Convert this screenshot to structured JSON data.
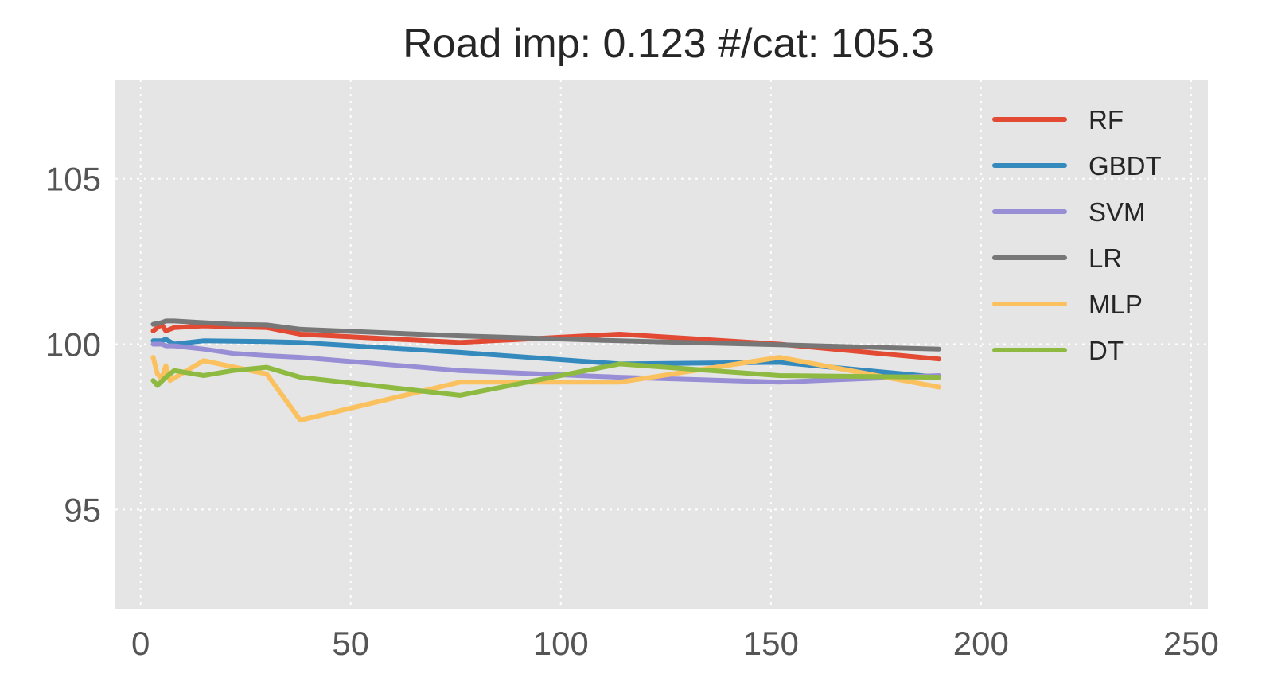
{
  "chart_data": {
    "type": "line",
    "title": "Road imp: 0.123 #/cat: 105.3",
    "xlabel": "",
    "ylabel": "",
    "xlim": [
      -6,
      254
    ],
    "ylim": [
      92,
      108
    ],
    "xticks": [
      0,
      50,
      100,
      150,
      200,
      250
    ],
    "yticks": [
      95,
      100,
      105
    ],
    "grid": true,
    "legend_position": "top-right",
    "series": [
      {
        "name": "RF",
        "color": "#E24A33",
        "points": [
          [
            3,
            100.4
          ],
          [
            5,
            100.6
          ],
          [
            6,
            100.4
          ],
          [
            8,
            100.5
          ],
          [
            15,
            100.55
          ],
          [
            30,
            100.5
          ],
          [
            38,
            100.3
          ],
          [
            76,
            100.05
          ],
          [
            114,
            100.3
          ],
          [
            152,
            100.0
          ],
          [
            190,
            99.55
          ]
        ]
      },
      {
        "name": "GBDT",
        "color": "#348ABD",
        "points": [
          [
            3,
            100.1
          ],
          [
            5,
            100.1
          ],
          [
            6,
            100.15
          ],
          [
            8,
            100.0
          ],
          [
            15,
            100.1
          ],
          [
            30,
            100.08
          ],
          [
            38,
            100.05
          ],
          [
            76,
            99.75
          ],
          [
            114,
            99.4
          ],
          [
            152,
            99.45
          ],
          [
            190,
            99.0
          ]
        ]
      },
      {
        "name": "SVM",
        "color": "#988ED5",
        "points": [
          [
            3,
            100.0
          ],
          [
            5,
            100.0
          ],
          [
            6,
            99.95
          ],
          [
            8,
            99.95
          ],
          [
            15,
            99.85
          ],
          [
            22,
            99.72
          ],
          [
            30,
            99.65
          ],
          [
            38,
            99.6
          ],
          [
            76,
            99.2
          ],
          [
            114,
            99.0
          ],
          [
            152,
            98.85
          ],
          [
            190,
            99.05
          ]
        ]
      },
      {
        "name": "LR",
        "color": "#777777",
        "points": [
          [
            3,
            100.6
          ],
          [
            5,
            100.65
          ],
          [
            6,
            100.7
          ],
          [
            8,
            100.7
          ],
          [
            15,
            100.65
          ],
          [
            22,
            100.6
          ],
          [
            30,
            100.58
          ],
          [
            38,
            100.45
          ],
          [
            76,
            100.25
          ],
          [
            114,
            100.1
          ],
          [
            152,
            99.98
          ],
          [
            190,
            99.85
          ]
        ]
      },
      {
        "name": "MLP",
        "color": "#FBC15E",
        "points": [
          [
            3,
            99.6
          ],
          [
            4,
            99.1
          ],
          [
            5,
            98.95
          ],
          [
            6,
            99.35
          ],
          [
            7,
            98.9
          ],
          [
            15,
            99.5
          ],
          [
            30,
            99.1
          ],
          [
            38,
            97.7
          ],
          [
            76,
            98.85
          ],
          [
            114,
            98.85
          ],
          [
            152,
            99.6
          ],
          [
            190,
            98.7
          ]
        ]
      },
      {
        "name": "DT",
        "color": "#8EBA42",
        "points": [
          [
            3,
            98.9
          ],
          [
            4,
            98.75
          ],
          [
            6,
            99.0
          ],
          [
            8,
            99.2
          ],
          [
            15,
            99.05
          ],
          [
            22,
            99.2
          ],
          [
            30,
            99.3
          ],
          [
            38,
            99.0
          ],
          [
            76,
            98.45
          ],
          [
            114,
            99.4
          ],
          [
            152,
            99.05
          ],
          [
            190,
            99.0
          ]
        ]
      }
    ]
  }
}
